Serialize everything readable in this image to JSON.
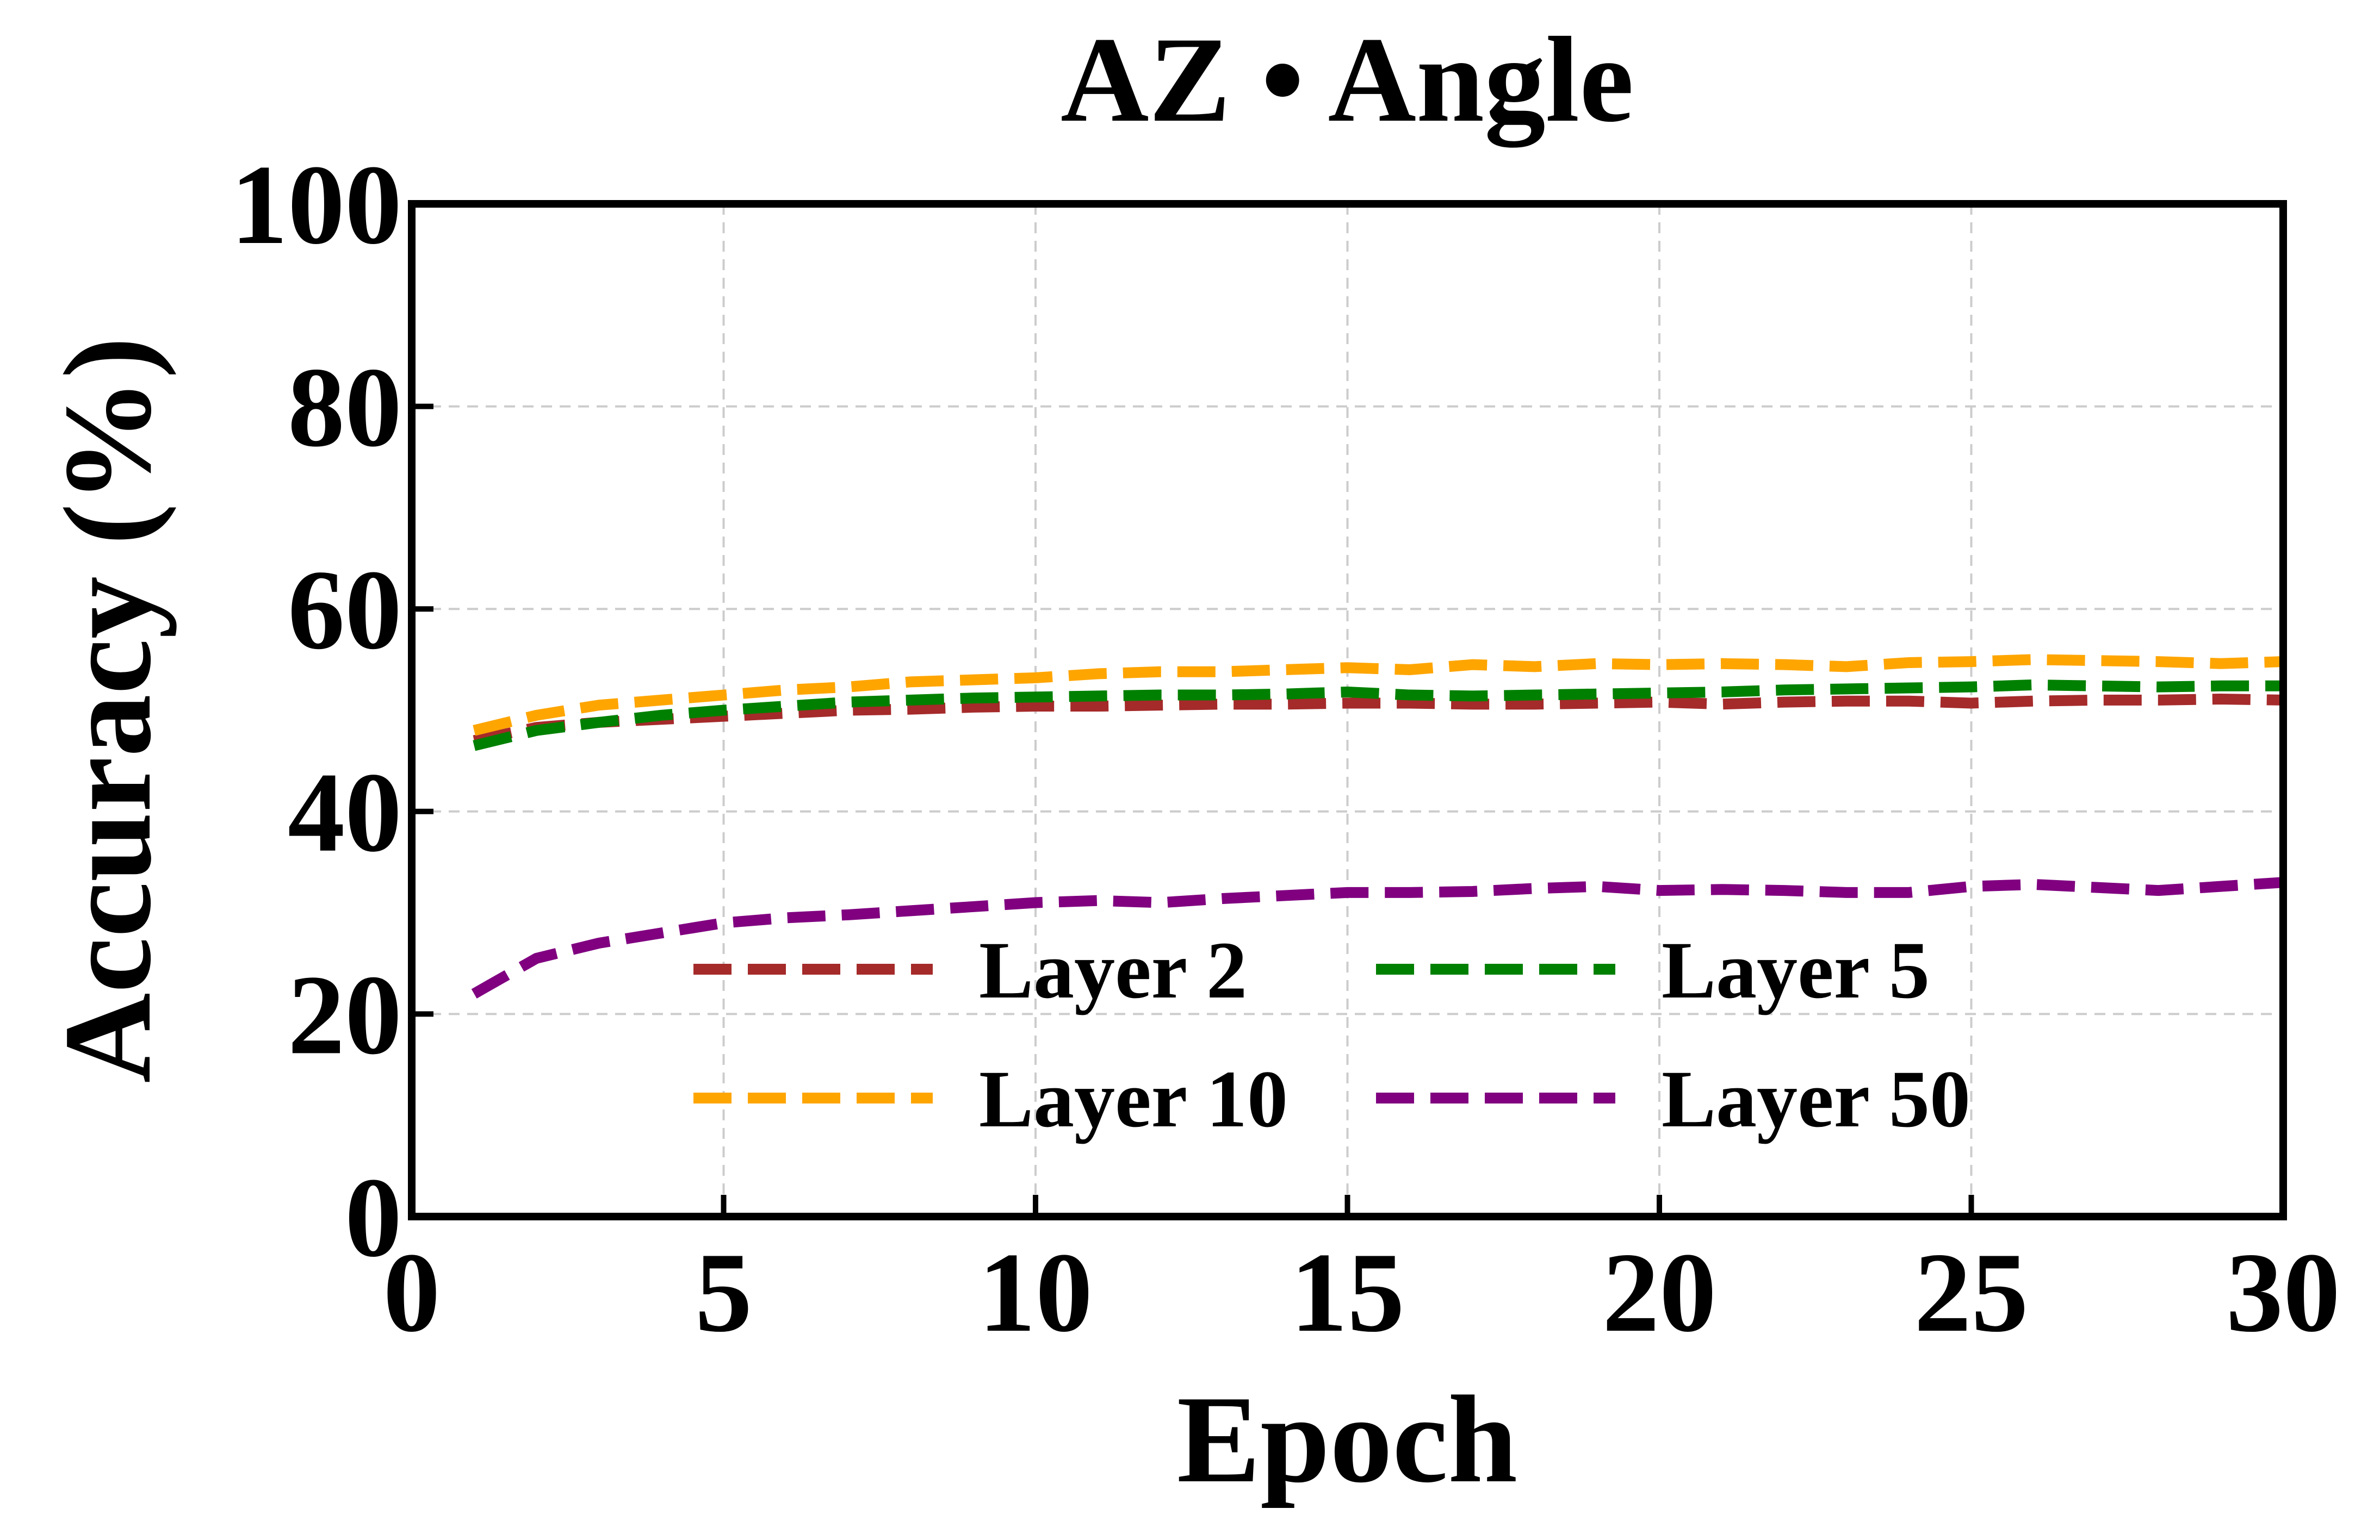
{
  "chart_data": {
    "type": "line",
    "title": "AZ • Angle",
    "xlabel": "Epoch",
    "ylabel": "Accuracy (%)",
    "xlim": [
      0,
      30
    ],
    "ylim": [
      0,
      100
    ],
    "xticks": [
      0,
      5,
      10,
      15,
      20,
      25,
      30
    ],
    "yticks": [
      0,
      20,
      40,
      60,
      80,
      100
    ],
    "grid": true,
    "legend_position": "lower-center",
    "x": [
      1,
      2,
      3,
      4,
      5,
      6,
      7,
      8,
      9,
      10,
      11,
      12,
      13,
      14,
      15,
      16,
      17,
      18,
      19,
      20,
      21,
      22,
      23,
      24,
      25,
      26,
      27,
      28,
      29,
      30
    ],
    "series": [
      {
        "name": "Layer 2",
        "color": "#a52a2a",
        "values": [
          47.0,
          48.3,
          48.8,
          49.1,
          49.4,
          49.7,
          50.0,
          50.1,
          50.3,
          50.4,
          50.4,
          50.5,
          50.6,
          50.6,
          50.7,
          50.7,
          50.6,
          50.6,
          50.7,
          50.8,
          50.6,
          50.8,
          50.9,
          50.9,
          50.7,
          50.9,
          51.0,
          51.0,
          51.1,
          51.0
        ]
      },
      {
        "name": "Layer 5",
        "color": "#008000",
        "values": [
          46.5,
          48.0,
          48.8,
          49.5,
          50.0,
          50.4,
          50.8,
          51.0,
          51.2,
          51.3,
          51.4,
          51.5,
          51.5,
          51.6,
          51.8,
          51.5,
          51.4,
          51.5,
          51.6,
          51.7,
          51.8,
          52.0,
          52.1,
          52.2,
          52.3,
          52.5,
          52.4,
          52.3,
          52.4,
          52.4
        ]
      },
      {
        "name": "Layer 10",
        "color": "#ffa500",
        "values": [
          48.0,
          49.5,
          50.5,
          51.0,
          51.5,
          52.0,
          52.3,
          52.8,
          53.0,
          53.2,
          53.6,
          53.8,
          53.8,
          54.0,
          54.2,
          54.0,
          54.5,
          54.3,
          54.6,
          54.5,
          54.6,
          54.5,
          54.3,
          54.7,
          54.8,
          55.0,
          54.9,
          54.8,
          54.6,
          54.8
        ]
      },
      {
        "name": "Layer 50",
        "color": "#800080",
        "values": [
          22.0,
          25.5,
          27.0,
          28.0,
          29.0,
          29.5,
          29.8,
          30.2,
          30.6,
          31.0,
          31.2,
          31.0,
          31.4,
          31.7,
          32.0,
          32.0,
          32.1,
          32.4,
          32.6,
          32.2,
          32.3,
          32.2,
          32.0,
          32.0,
          32.6,
          32.8,
          32.5,
          32.2,
          32.6,
          33.0
        ]
      }
    ]
  }
}
